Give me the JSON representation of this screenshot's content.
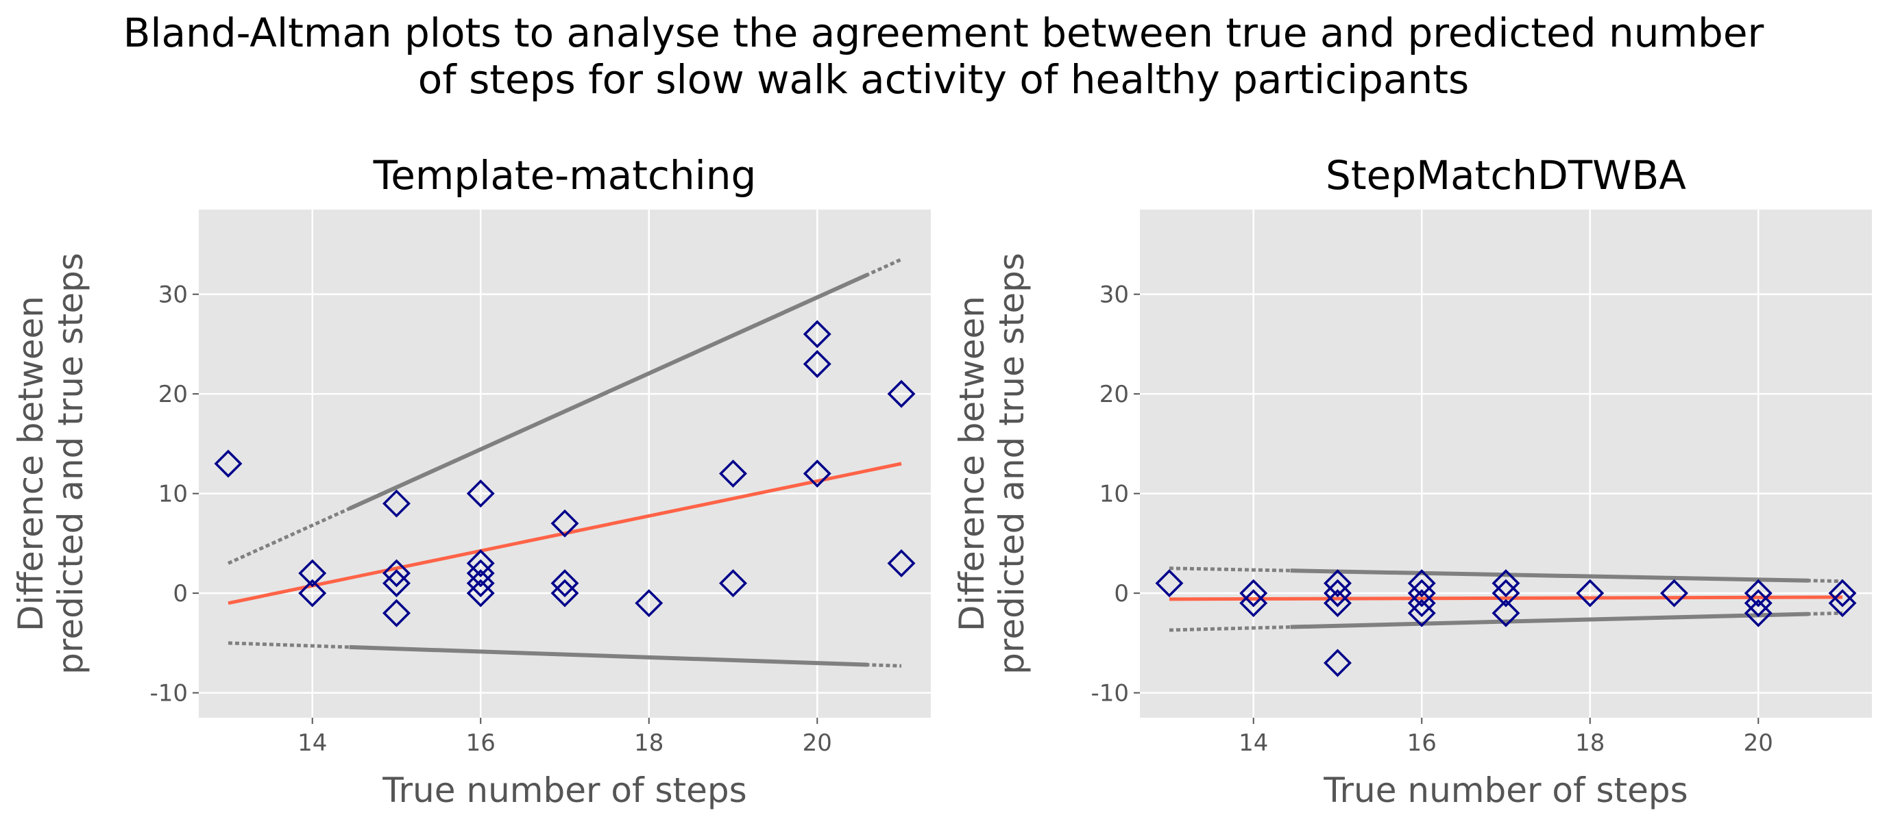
{
  "figure": {
    "title_line1": "Bland-Altman plots to analyse the agreement between true and predicted number",
    "title_line2": "of steps for slow walk activity of healthy participants"
  },
  "colors": {
    "panel_background": "#e5e5e5",
    "grid": "#ffffff",
    "marker_edge": "#00008b",
    "regression_line": "#ff6347",
    "limit_lines": "#808080",
    "text": "#555555"
  },
  "chart_data": [
    {
      "type": "scatter",
      "title": "Template-matching",
      "xlabel": "True number of steps",
      "ylabel": [
        "Difference between",
        "predicted and true steps"
      ],
      "xlim": [
        12.65,
        21.35
      ],
      "ylim": [
        -12.5,
        38.5
      ],
      "xticks": [
        14,
        16,
        18,
        20
      ],
      "yticks": [
        -10,
        0,
        10,
        20,
        30
      ],
      "grid": true,
      "marker": "diamond-open",
      "points": [
        {
          "x": 13,
          "y": 13
        },
        {
          "x": 14,
          "y": 2
        },
        {
          "x": 14,
          "y": 0
        },
        {
          "x": 15,
          "y": 9
        },
        {
          "x": 15,
          "y": 2
        },
        {
          "x": 15,
          "y": 1
        },
        {
          "x": 15,
          "y": -2
        },
        {
          "x": 16,
          "y": 10
        },
        {
          "x": 16,
          "y": 3
        },
        {
          "x": 16,
          "y": 2
        },
        {
          "x": 16,
          "y": 1
        },
        {
          "x": 16,
          "y": 0
        },
        {
          "x": 17,
          "y": 7
        },
        {
          "x": 17,
          "y": 1
        },
        {
          "x": 17,
          "y": 0
        },
        {
          "x": 18,
          "y": -1
        },
        {
          "x": 19,
          "y": 12
        },
        {
          "x": 19,
          "y": 1
        },
        {
          "x": 20,
          "y": 26
        },
        {
          "x": 20,
          "y": 23
        },
        {
          "x": 20,
          "y": 12
        },
        {
          "x": 21,
          "y": 20
        },
        {
          "x": 21,
          "y": 3
        }
      ],
      "regression_line": {
        "x": [
          13,
          21
        ],
        "y": [
          -1,
          13
        ]
      },
      "upper_limit": {
        "x": [
          13,
          21
        ],
        "y": [
          3,
          33.5
        ]
      },
      "lower_limit": {
        "x": [
          13,
          21
        ],
        "y": [
          -5,
          -7.3
        ]
      }
    },
    {
      "type": "scatter",
      "title": "StepMatchDTWBA",
      "xlabel": "True number of steps",
      "ylabel": [
        "Difference between",
        "predicted and true steps"
      ],
      "xlim": [
        12.65,
        21.35
      ],
      "ylim": [
        -12.5,
        38.5
      ],
      "xticks": [
        14,
        16,
        18,
        20
      ],
      "yticks": [
        -10,
        0,
        10,
        20,
        30
      ],
      "grid": true,
      "marker": "diamond-open",
      "points": [
        {
          "x": 13,
          "y": 1
        },
        {
          "x": 14,
          "y": 0
        },
        {
          "x": 14,
          "y": -1
        },
        {
          "x": 15,
          "y": 1
        },
        {
          "x": 15,
          "y": 0
        },
        {
          "x": 15,
          "y": -1
        },
        {
          "x": 15,
          "y": -7
        },
        {
          "x": 16,
          "y": 1
        },
        {
          "x": 16,
          "y": 0
        },
        {
          "x": 16,
          "y": -1
        },
        {
          "x": 16,
          "y": -2
        },
        {
          "x": 17,
          "y": 1
        },
        {
          "x": 17,
          "y": 0
        },
        {
          "x": 17,
          "y": -2
        },
        {
          "x": 18,
          "y": 0
        },
        {
          "x": 19,
          "y": 0
        },
        {
          "x": 20,
          "y": 0
        },
        {
          "x": 20,
          "y": -1
        },
        {
          "x": 20,
          "y": -2
        },
        {
          "x": 21,
          "y": 0
        },
        {
          "x": 21,
          "y": -1
        }
      ],
      "regression_line": {
        "x": [
          13,
          21
        ],
        "y": [
          -0.6,
          -0.4
        ]
      },
      "upper_limit": {
        "x": [
          13,
          21
        ],
        "y": [
          2.5,
          1.2
        ]
      },
      "lower_limit": {
        "x": [
          13,
          21
        ],
        "y": [
          -3.7,
          -2.0
        ]
      }
    }
  ]
}
